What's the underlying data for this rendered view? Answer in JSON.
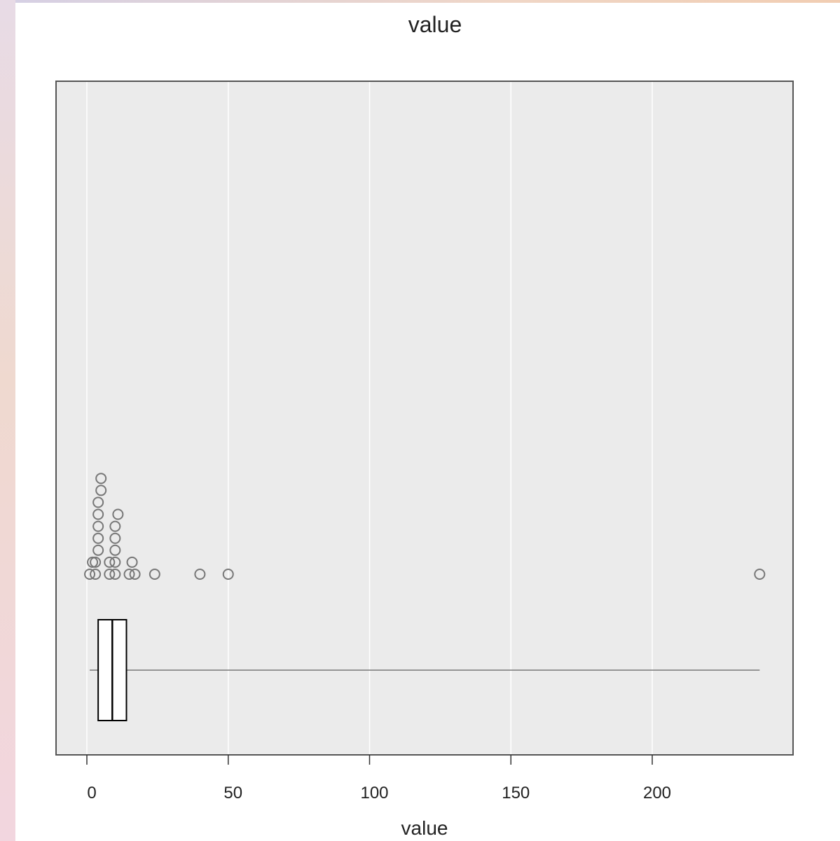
{
  "chart_data": {
    "type": "boxplot",
    "orientation": "horizontal",
    "title": "value",
    "xlabel": "value",
    "ylabel": "",
    "xlim": [
      -5,
      250
    ],
    "xticks": [
      0,
      50,
      100,
      150,
      200
    ],
    "xtick_labels": [
      "0",
      "50",
      "100",
      "150",
      "200"
    ],
    "grid": "vertical",
    "box": {
      "min": 1,
      "q1": 4,
      "median": 9,
      "q3": 14,
      "max": 238
    },
    "dot_strip": [
      {
        "x": 1,
        "level": 0
      },
      {
        "x": 3,
        "level": 0
      },
      {
        "x": 8,
        "level": 0
      },
      {
        "x": 10,
        "level": 0
      },
      {
        "x": 15,
        "level": 0
      },
      {
        "x": 17,
        "level": 0
      },
      {
        "x": 24,
        "level": 0
      },
      {
        "x": 40,
        "level": 0
      },
      {
        "x": 50,
        "level": 0
      },
      {
        "x": 238,
        "level": 0
      },
      {
        "x": 2,
        "level": 1
      },
      {
        "x": 3,
        "level": 1
      },
      {
        "x": 8,
        "level": 1
      },
      {
        "x": 10,
        "level": 1
      },
      {
        "x": 16,
        "level": 1
      },
      {
        "x": 4,
        "level": 2
      },
      {
        "x": 10,
        "level": 2
      },
      {
        "x": 4,
        "level": 3
      },
      {
        "x": 10,
        "level": 3
      },
      {
        "x": 4,
        "level": 4
      },
      {
        "x": 10,
        "level": 4
      },
      {
        "x": 4,
        "level": 5
      },
      {
        "x": 11,
        "level": 5
      },
      {
        "x": 4,
        "level": 6
      },
      {
        "x": 5,
        "level": 7
      },
      {
        "x": 5,
        "level": 8
      }
    ],
    "colors": {
      "panel_bg": "#ebebeb",
      "grid": "#ffffff",
      "border": "#555555",
      "points": "#777777",
      "box": "#000000",
      "whisker": "#777777"
    }
  }
}
